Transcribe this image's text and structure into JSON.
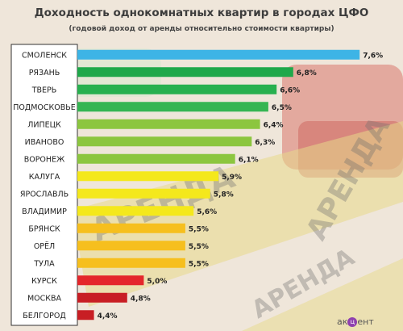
{
  "chart_data": {
    "type": "bar",
    "orientation": "horizontal",
    "title": "Доходность однокомнатных квартир в городах ЦФО",
    "subtitle": "(годовой доход от аренды относительно стоимости квартиры)",
    "categories": [
      "СМОЛЕНСК",
      "РЯЗАНЬ",
      "ТВЕРЬ",
      "ПОДМОСКОВЬЕ",
      "ЛИПЕЦК",
      "ИВАНОВО",
      "ВОРОНЕЖ",
      "КАЛУГА",
      "ЯРОСЛАВЛЬ",
      "ВЛАДИМИР",
      "БРЯНСК",
      "ОРЁЛ",
      "ТУЛА",
      "КУРСК",
      "МОСКВА",
      "БЕЛГОРОД"
    ],
    "values": [
      7.6,
      6.8,
      6.6,
      6.5,
      6.4,
      6.3,
      6.1,
      5.9,
      5.8,
      5.6,
      5.5,
      5.5,
      5.5,
      5.0,
      4.8,
      4.4
    ],
    "value_labels": [
      "7,6%",
      "6,8%",
      "6,6%",
      "6,5%",
      "6,4%",
      "6,3%",
      "6,1%",
      "5,9%",
      "5,8%",
      "5,6%",
      "5,5%",
      "5,5%",
      "5,5%",
      "5,0%",
      "4,8%",
      "4,4%"
    ],
    "colors": [
      "#3db4e6",
      "#1fa84a",
      "#28b04f",
      "#35b552",
      "#8cc63f",
      "#8cc63f",
      "#8cc63f",
      "#f4e81c",
      "#f4e81c",
      "#f4e81c",
      "#f6bf1e",
      "#f6bf1e",
      "#f6bf1e",
      "#e4262b",
      "#c81e24",
      "#c81e24"
    ],
    "axis_min": 4.2,
    "xlabel": "",
    "ylabel": "",
    "grid": false,
    "legend": "none"
  },
  "watermark": {
    "text": "АРЕНДА"
  },
  "logo": {
    "text_before": "ак",
    "mark": "ц",
    "text_after": "ент"
  }
}
